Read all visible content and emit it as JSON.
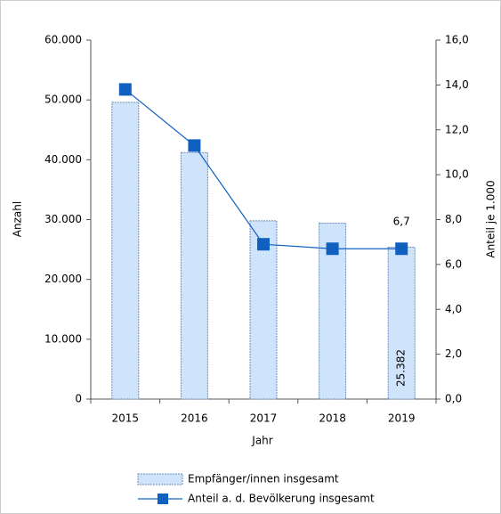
{
  "chart_data": {
    "type": "bar-line",
    "categories": [
      "2015",
      "2016",
      "2017",
      "2018",
      "2019"
    ],
    "xlabel": "Jahr",
    "ylabel": "Anzahl",
    "y2label": "Anteil je 1.000",
    "ylim": [
      0,
      60000
    ],
    "yticks": [
      0,
      {
        "value": 10000,
        "label": "10.000"
      },
      {
        "value": 20000,
        "label": "20.000"
      },
      {
        "value": 30000,
        "label": "30.000"
      },
      {
        "value": 40000,
        "label": "40.000"
      },
      {
        "value": 50000,
        "label": "50.000"
      },
      {
        "value": 60000,
        "label": "60.000"
      }
    ],
    "y2lim": [
      0,
      16
    ],
    "y2ticks": [
      {
        "value": 0,
        "label": "0,0"
      },
      {
        "value": 2,
        "label": "2,0"
      },
      {
        "value": 4,
        "label": "4,0"
      },
      {
        "value": 6,
        "label": "6,0"
      },
      {
        "value": 8,
        "label": "8,0"
      },
      {
        "value": 10,
        "label": "10,0"
      },
      {
        "value": 12,
        "label": "12,0"
      },
      {
        "value": 14,
        "label": "14,0"
      },
      {
        "value": 16,
        "label": "16,0"
      }
    ],
    "series": [
      {
        "name": "Empfänger/innen insgesamt",
        "type": "bar",
        "color": "#cfe3fa",
        "values": [
          49600,
          41200,
          29800,
          29400,
          25382
        ],
        "value_labels": [
          null,
          null,
          null,
          null,
          "25.382"
        ]
      },
      {
        "name": "Anteil a. d. Bevölkerung insgesamt",
        "type": "line",
        "axis": "y2",
        "color": "#1060c0",
        "values": [
          13.8,
          11.3,
          6.9,
          6.7,
          6.7
        ],
        "value_labels": [
          null,
          null,
          null,
          null,
          "6,7"
        ]
      }
    ]
  }
}
